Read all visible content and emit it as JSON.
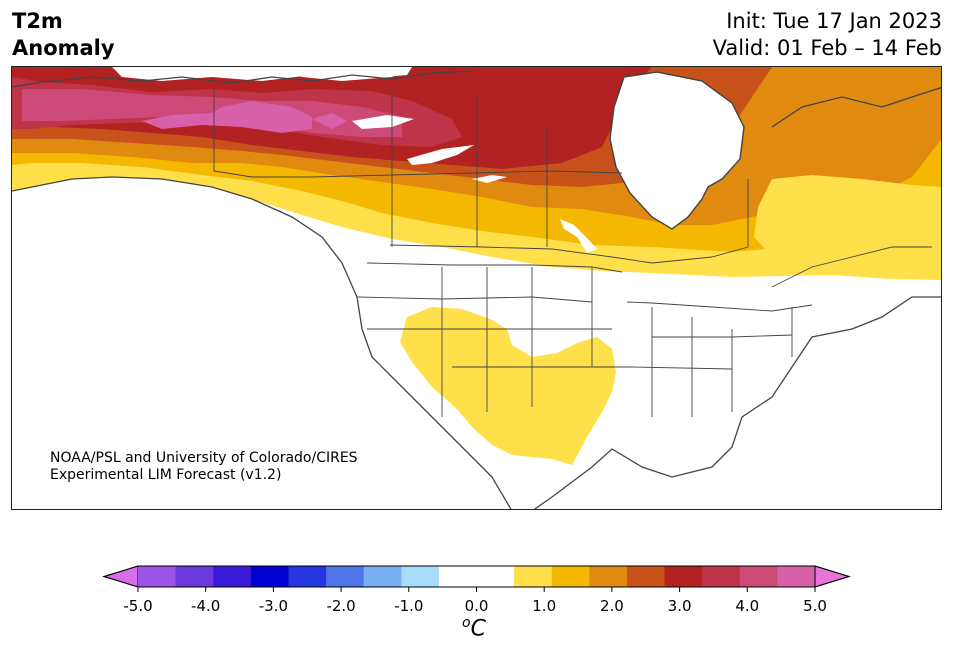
{
  "title": {
    "line1": "T2m",
    "line2": "Anomaly"
  },
  "header": {
    "init": "Init: Tue 17 Jan 2023",
    "valid": "Valid: 01 Feb – 14 Feb"
  },
  "credit": {
    "line1": "NOAA/PSL and University of Colorado/CIRES",
    "line2": "Experimental LIM Forecast (v1.2)"
  },
  "colorbar": {
    "unit_sup": "o",
    "unit": "C",
    "ticks": [
      "-5.0",
      "-4.0",
      "-3.0",
      "-2.0",
      "-1.0",
      "0.0",
      "1.0",
      "2.0",
      "3.0",
      "4.0",
      "5.0"
    ],
    "low_extend_color": "#d86ee8",
    "high_extend_color": "#e875d8",
    "colors": [
      "#d86ee8",
      "#9b55e6",
      "#6a38dc",
      "#3a1ad8",
      "#0000d0",
      "#2535e0",
      "#4e74e8",
      "#78aef2",
      "#a9dcfa",
      "#ffffff",
      "#ffffff",
      "#ffe04a",
      "#f4b800",
      "#e08a10",
      "#c8531a",
      "#b22222",
      "#c0344a",
      "#cc4a78",
      "#d860a8",
      "#e875d8"
    ]
  },
  "map_fill_colors": {
    "level_1": "#ffe04a",
    "level_1_5": "#f4b800",
    "level_2": "#e08a10",
    "level_2_5": "#c8531a",
    "level_3": "#b22222",
    "level_3_5": "#c0344a",
    "level_4": "#cc4a78",
    "level_4_5": "#d860a8",
    "land_outline": "#444444"
  }
}
